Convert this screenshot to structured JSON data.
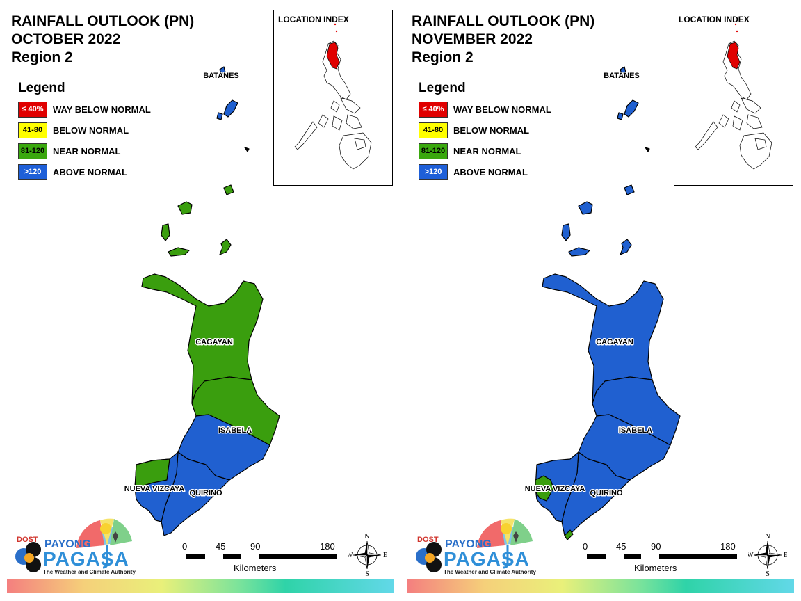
{
  "panels": [
    {
      "title_line1": "RAINFALL OUTLOOK (PN)",
      "title_line2": "OCTOBER 2022",
      "title_line3": "Region 2",
      "provinces": {
        "batanes": "#2060d0",
        "cagayan": "#3a9e0e",
        "isabela": "#2060d0",
        "isabela_north": "#3a9e0e",
        "quirino": "#2060d0",
        "nueva_vizcaya": "#2060d0",
        "nueva_vizcaya_west": "#3a9e0e",
        "babuyan": "#3a9e0e"
      }
    },
    {
      "title_line1": "RAINFALL OUTLOOK (PN)",
      "title_line2": "NOVEMBER 2022",
      "title_line3": "Region 2",
      "provinces": {
        "batanes": "#2060d0",
        "cagayan": "#2060d0",
        "isabela": "#2060d0",
        "isabela_north": "#2060d0",
        "quirino": "#2060d0",
        "nueva_vizcaya": "#2060d0",
        "nueva_vizcaya_west": "#3a9e0e",
        "babuyan": "#2060d0"
      }
    }
  ],
  "legend": {
    "title": "Legend",
    "items": [
      {
        "range": "≤ 40%",
        "label": "WAY BELOW NORMAL",
        "color": "#e00000",
        "text_color": "#ffffff"
      },
      {
        "range": "41-80",
        "label": "BELOW NORMAL",
        "color": "#ffff00",
        "text_color": "#000000"
      },
      {
        "range": "81-120",
        "label": "NEAR NORMAL",
        "color": "#3aa80e",
        "text_color": "#000000"
      },
      {
        "range": ">120",
        "label": "ABOVE NORMAL",
        "color": "#1e5fd8",
        "text_color": "#ffffff"
      }
    ]
  },
  "map_labels": {
    "batanes": "BATANES",
    "cagayan": "CAGAYAN",
    "isabela": "ISABELA",
    "quirino": "QUIRINO",
    "nueva_vizcaya": "NUEVA VIZCAYA"
  },
  "inset": {
    "title": "LOCATION INDEX",
    "highlight_color": "#e00000"
  },
  "scale": {
    "ticks": [
      "0",
      "45",
      "90",
      "180"
    ],
    "units": "Kilometers"
  },
  "compass": {
    "n": "N",
    "e": "E",
    "s": "S",
    "w": "W"
  },
  "logo": {
    "dost": "DOST",
    "payong": "PAYONG",
    "pagasa": "PAGASA",
    "tagline": "The Weather and Climate Authority"
  }
}
